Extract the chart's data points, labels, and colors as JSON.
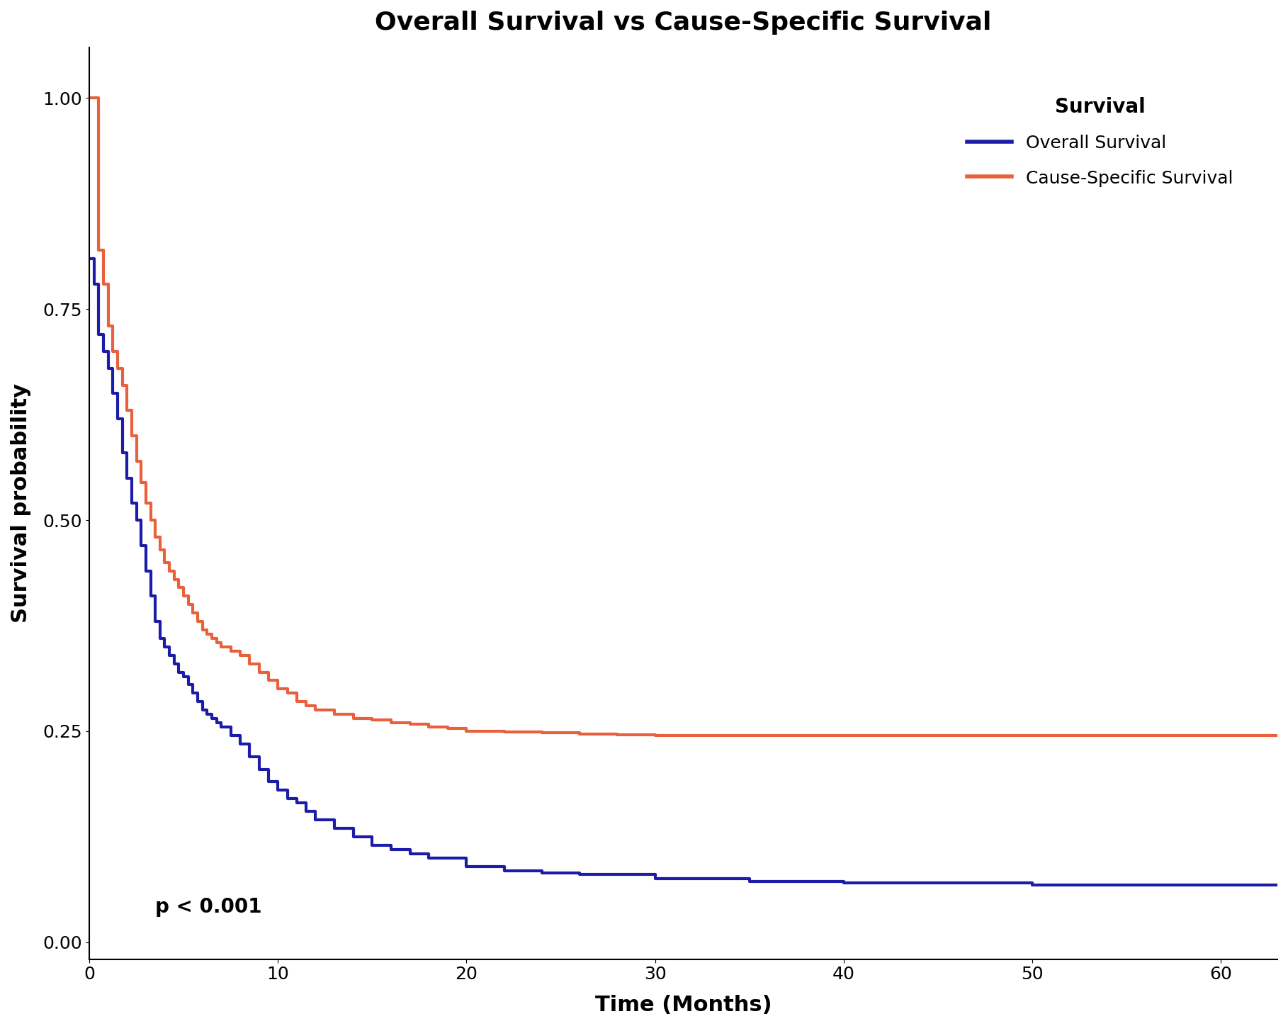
{
  "title": "Overall Survival vs Cause-Specific Survival",
  "xlabel": "Time (Months)",
  "ylabel": "Survival probability",
  "legend_title": "Survival",
  "legend_labels": [
    "Overall Survival",
    "Cause-Specific Survival"
  ],
  "os_color": "#1c1ca8",
  "css_color": "#e8603c",
  "line_width": 3.0,
  "pvalue_text": "p < 0.001",
  "xlim": [
    0,
    63
  ],
  "ylim": [
    -0.02,
    1.06
  ],
  "yticks": [
    0.0,
    0.25,
    0.5,
    0.75,
    1.0
  ],
  "xticks": [
    0,
    10,
    20,
    30,
    40,
    50,
    60
  ],
  "os_times": [
    0,
    0.25,
    0.5,
    0.75,
    1.0,
    1.25,
    1.5,
    1.75,
    2.0,
    2.25,
    2.5,
    2.75,
    3.0,
    3.25,
    3.5,
    3.75,
    4.0,
    4.25,
    4.5,
    4.75,
    5.0,
    5.25,
    5.5,
    5.75,
    6.0,
    6.25,
    6.5,
    6.75,
    7.0,
    7.5,
    8.0,
    8.5,
    9.0,
    9.5,
    10.0,
    10.5,
    11.0,
    11.5,
    12.0,
    13.0,
    14.0,
    15.0,
    16.0,
    17.0,
    18.0,
    20.0,
    22.0,
    24.0,
    26.0,
    30.0,
    35.0,
    40.0,
    50.0,
    63.0
  ],
  "os_surv": [
    0.81,
    0.78,
    0.72,
    0.7,
    0.68,
    0.65,
    0.62,
    0.58,
    0.55,
    0.52,
    0.5,
    0.47,
    0.44,
    0.41,
    0.38,
    0.36,
    0.35,
    0.34,
    0.33,
    0.32,
    0.315,
    0.305,
    0.295,
    0.285,
    0.275,
    0.27,
    0.265,
    0.26,
    0.255,
    0.245,
    0.235,
    0.22,
    0.205,
    0.19,
    0.18,
    0.17,
    0.165,
    0.155,
    0.145,
    0.135,
    0.125,
    0.115,
    0.11,
    0.105,
    0.1,
    0.09,
    0.085,
    0.082,
    0.08,
    0.075,
    0.072,
    0.07,
    0.068,
    0.068
  ],
  "css_times": [
    0,
    0.1,
    0.5,
    0.75,
    1.0,
    1.25,
    1.5,
    1.75,
    2.0,
    2.25,
    2.5,
    2.75,
    3.0,
    3.25,
    3.5,
    3.75,
    4.0,
    4.25,
    4.5,
    4.75,
    5.0,
    5.25,
    5.5,
    5.75,
    6.0,
    6.25,
    6.5,
    6.75,
    7.0,
    7.5,
    8.0,
    8.5,
    9.0,
    9.5,
    10.0,
    10.5,
    11.0,
    11.5,
    12.0,
    13.0,
    14.0,
    15.0,
    16.0,
    17.0,
    18.0,
    19.0,
    20.0,
    22.0,
    24.0,
    26.0,
    28.0,
    30.0,
    35.0,
    40.0,
    50.0,
    63.0
  ],
  "css_surv": [
    1.0,
    1.0,
    0.82,
    0.78,
    0.73,
    0.7,
    0.68,
    0.66,
    0.63,
    0.6,
    0.57,
    0.545,
    0.52,
    0.5,
    0.48,
    0.465,
    0.45,
    0.44,
    0.43,
    0.42,
    0.41,
    0.4,
    0.39,
    0.38,
    0.37,
    0.365,
    0.36,
    0.355,
    0.35,
    0.345,
    0.34,
    0.33,
    0.32,
    0.31,
    0.3,
    0.295,
    0.285,
    0.28,
    0.275,
    0.27,
    0.265,
    0.263,
    0.26,
    0.258,
    0.255,
    0.253,
    0.25,
    0.249,
    0.248,
    0.247,
    0.246,
    0.245,
    0.245,
    0.245,
    0.245,
    0.245
  ]
}
